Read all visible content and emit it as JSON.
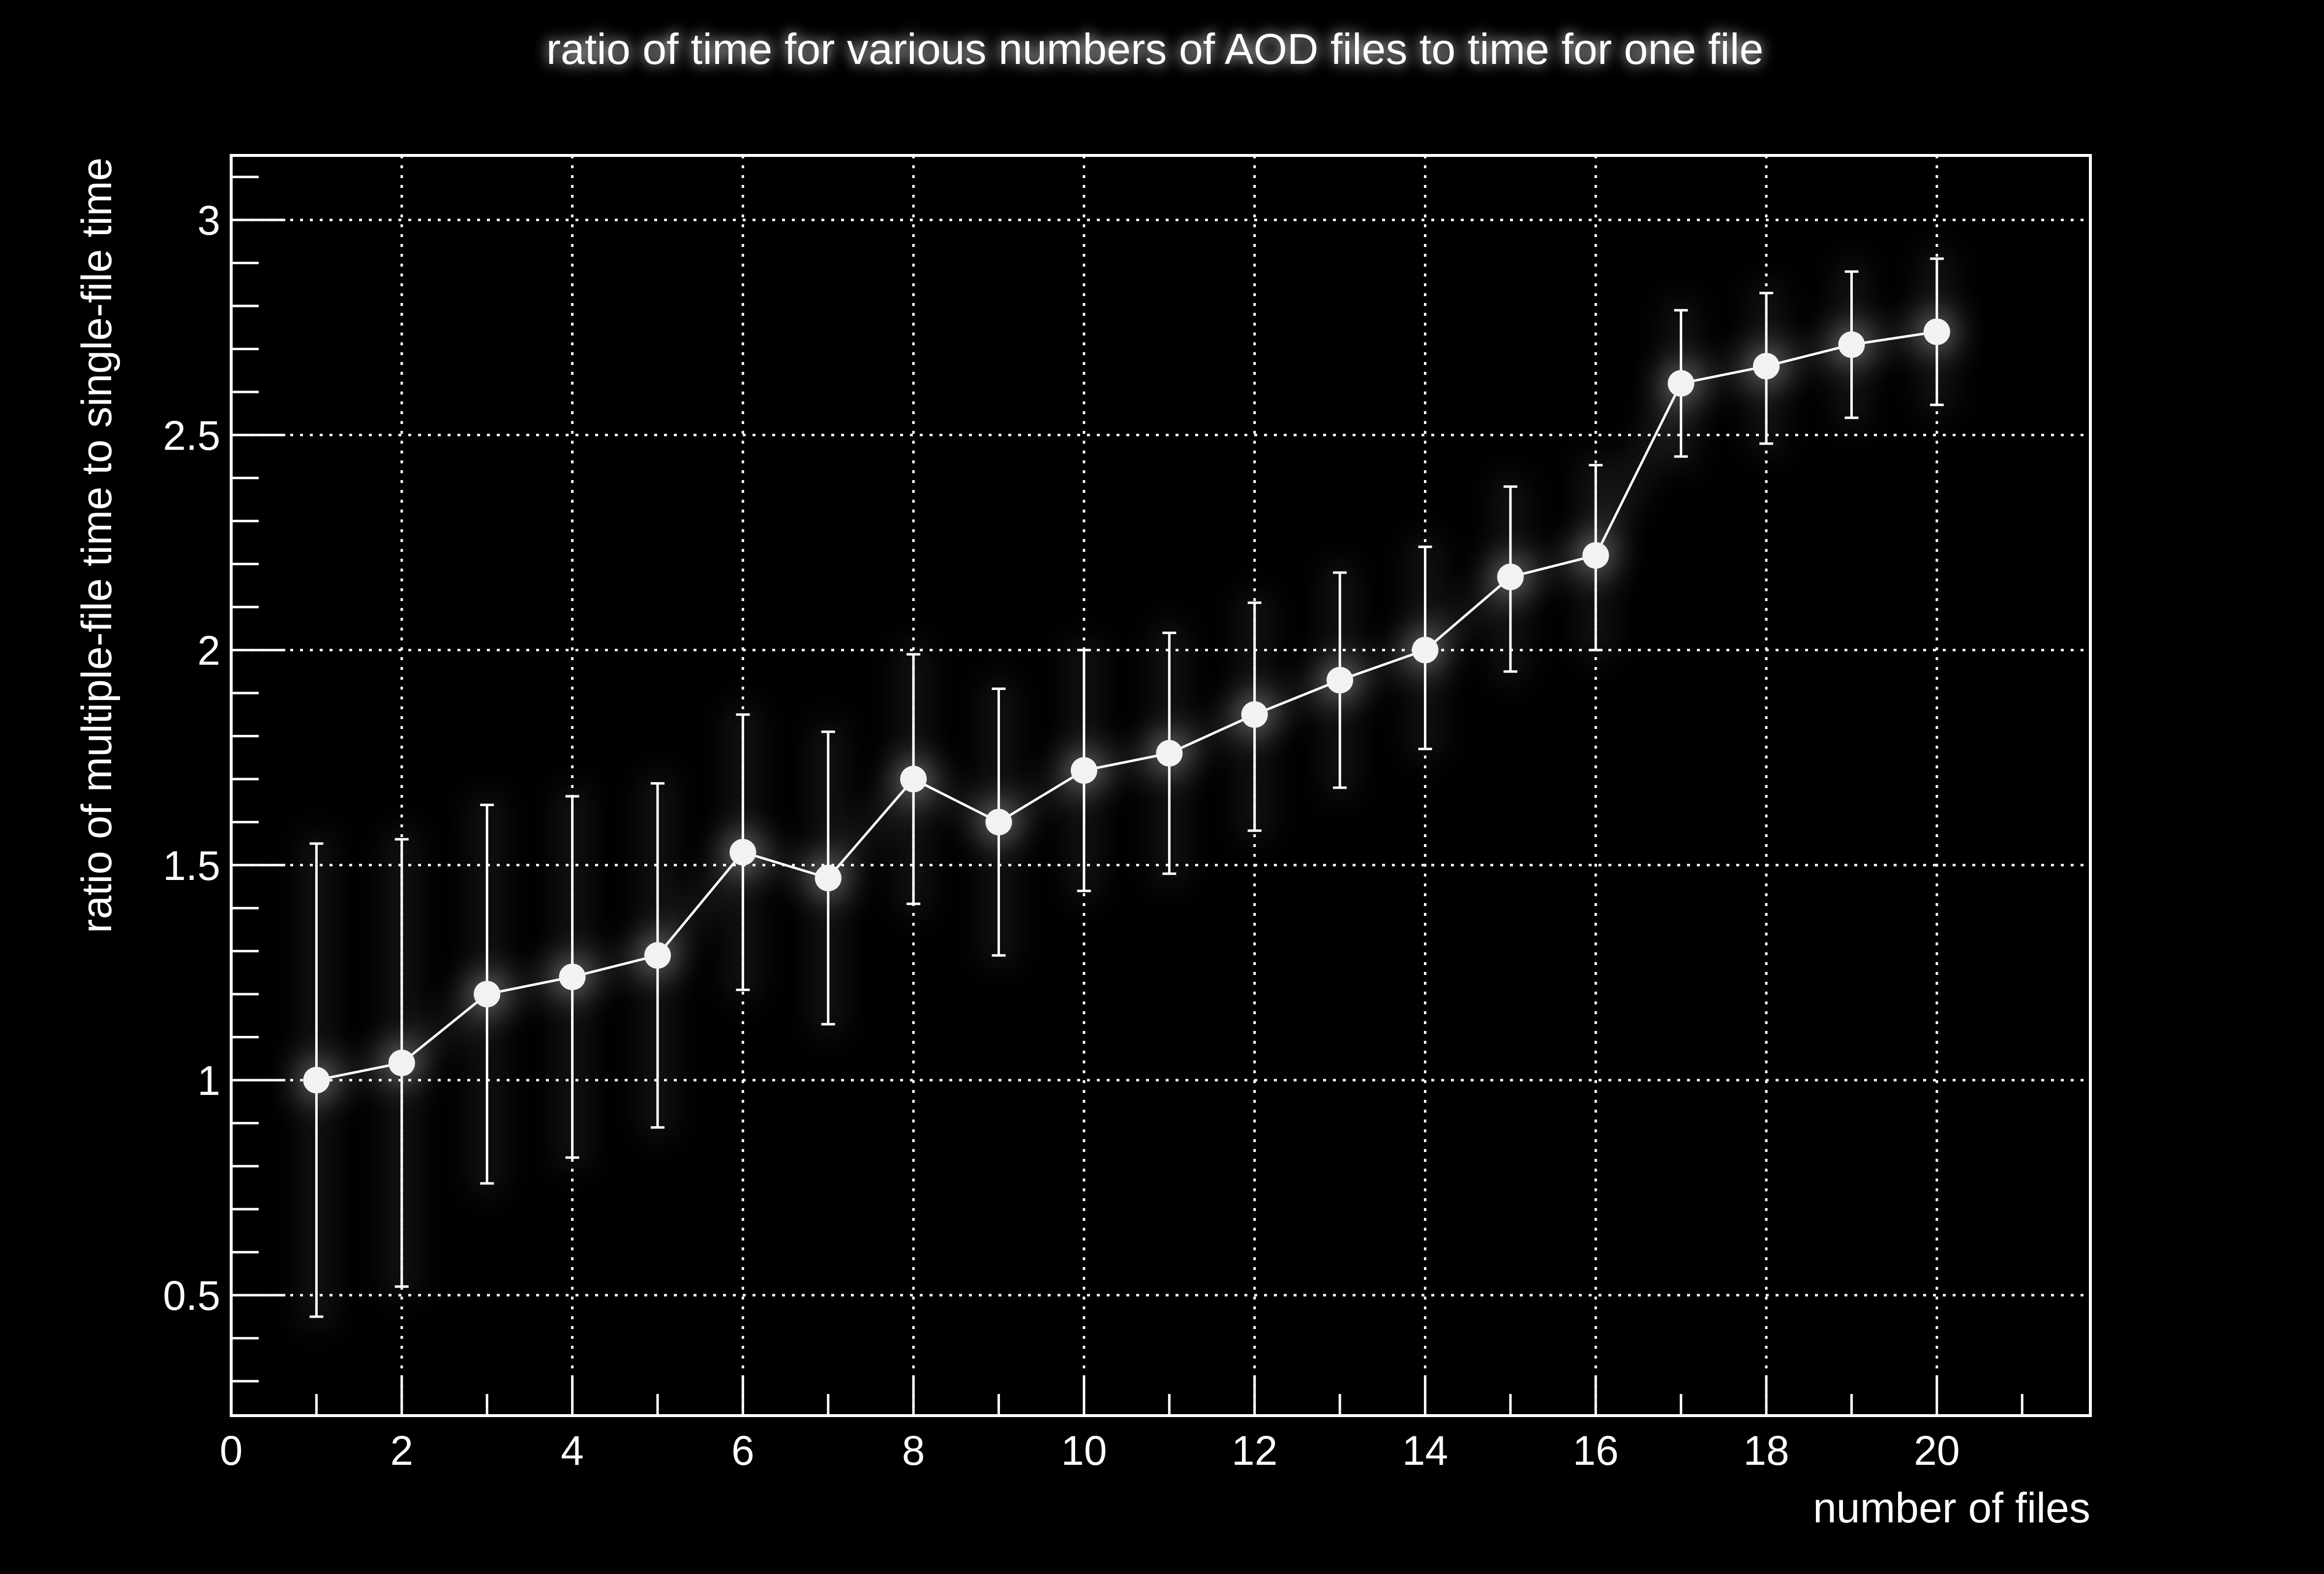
{
  "chart_data": {
    "type": "scatter",
    "title": "ratio of time for various numbers of AOD files to time for one file",
    "xlabel": "number of files",
    "ylabel": "ratio of multiple-file time to single-file time",
    "xlim": [
      0,
      21.8
    ],
    "ylim": [
      0.22,
      3.15
    ],
    "x_ticks": [
      0,
      2,
      4,
      6,
      8,
      10,
      12,
      14,
      16,
      18,
      20
    ],
    "y_ticks": [
      0.5,
      1,
      1.5,
      2,
      2.5,
      3
    ],
    "grid": true,
    "series": [
      {
        "x": [
          1,
          2,
          3,
          4,
          5,
          6,
          7,
          8,
          9,
          10,
          11,
          12,
          13,
          14,
          15,
          16,
          17,
          18,
          19,
          20
        ],
        "y": [
          1.0,
          1.04,
          1.2,
          1.24,
          1.29,
          1.53,
          1.47,
          1.7,
          1.6,
          1.72,
          1.76,
          1.85,
          1.93,
          2.0,
          2.17,
          2.22,
          2.62,
          2.66,
          2.71,
          2.74
        ],
        "y_err_low": [
          0.55,
          0.52,
          0.44,
          0.42,
          0.4,
          0.32,
          0.34,
          0.29,
          0.31,
          0.28,
          0.28,
          0.27,
          0.25,
          0.23,
          0.22,
          0.22,
          0.17,
          0.18,
          0.17,
          0.17
        ],
        "y_err_high": [
          0.55,
          0.52,
          0.44,
          0.42,
          0.4,
          0.32,
          0.34,
          0.29,
          0.31,
          0.28,
          0.28,
          0.26,
          0.25,
          0.24,
          0.21,
          0.21,
          0.17,
          0.17,
          0.17,
          0.17
        ]
      }
    ]
  },
  "colors": {
    "background": "#000000",
    "foreground": "#ffffff",
    "marker": "#f2f2f2"
  }
}
